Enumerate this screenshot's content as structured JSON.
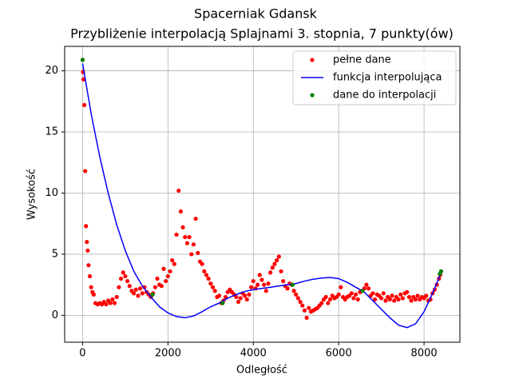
{
  "chart_data": {
    "type": "line",
    "title": "Spacerniak Gdansk",
    "subtitle": "Przybliżenie interpolacją Splajnami 3. stopnia, 7 punkty(ów)",
    "x_label": "Odległość",
    "y_label": "Wysokość",
    "xlim": [
      -420,
      8840
    ],
    "ylim": [
      -2.2,
      22
    ],
    "xticks": [
      0,
      2000,
      4000,
      6000,
      8000
    ],
    "yticks": [
      0,
      5,
      10,
      15,
      20
    ],
    "grid": true,
    "legend": "upper right",
    "series": [
      {
        "name": "pełne dane",
        "color": "#ff0000",
        "type": "scatter",
        "x": [
          0,
          10,
          20,
          40,
          60,
          80,
          100,
          120,
          140,
          170,
          200,
          230,
          260,
          300,
          350,
          400,
          450,
          500,
          550,
          600,
          650,
          700,
          750,
          800,
          850,
          900,
          950,
          1000,
          1050,
          1100,
          1150,
          1200,
          1250,
          1300,
          1350,
          1400,
          1450,
          1500,
          1550,
          1600,
          1650,
          1700,
          1750,
          1800,
          1850,
          1900,
          1950,
          2000,
          2050,
          2100,
          2150,
          2200,
          2250,
          2300,
          2350,
          2400,
          2450,
          2500,
          2550,
          2600,
          2650,
          2700,
          2750,
          2800,
          2850,
          2900,
          2950,
          3000,
          3050,
          3100,
          3150,
          3200,
          3250,
          3300,
          3350,
          3400,
          3450,
          3500,
          3550,
          3600,
          3650,
          3700,
          3750,
          3800,
          3850,
          3900,
          3950,
          4000,
          4050,
          4100,
          4150,
          4200,
          4250,
          4300,
          4350,
          4400,
          4450,
          4500,
          4550,
          4600,
          4650,
          4700,
          4750,
          4800,
          4850,
          4900,
          4950,
          5000,
          5050,
          5100,
          5150,
          5200,
          5250,
          5300,
          5350,
          5400,
          5450,
          5500,
          5550,
          5600,
          5650,
          5700,
          5750,
          5800,
          5850,
          5900,
          5950,
          6000,
          6050,
          6100,
          6150,
          6200,
          6250,
          6300,
          6350,
          6400,
          6450,
          6500,
          6550,
          6600,
          6650,
          6700,
          6750,
          6800,
          6850,
          6900,
          6950,
          7000,
          7050,
          7100,
          7150,
          7200,
          7250,
          7300,
          7350,
          7400,
          7450,
          7500,
          7550,
          7600,
          7650,
          7700,
          7750,
          7800,
          7850,
          7900,
          7950,
          8000,
          8050,
          8100,
          8150,
          8200,
          8250,
          8300,
          8350,
          8380,
          8400
        ],
        "values": [
          20.9,
          19.9,
          19.3,
          17.2,
          11.8,
          7.3,
          6.0,
          5.3,
          4.1,
          3.2,
          2.3,
          1.9,
          1.7,
          1.0,
          0.9,
          1.0,
          0.9,
          1.1,
          0.9,
          1.2,
          1.0,
          1.3,
          1.0,
          1.5,
          2.3,
          3.0,
          3.5,
          3.2,
          2.8,
          2.4,
          2.0,
          1.8,
          2.1,
          1.6,
          2.2,
          1.8,
          2.3,
          1.9,
          1.7,
          1.5,
          1.8,
          2.3,
          3.0,
          2.5,
          2.4,
          3.8,
          2.8,
          3.2,
          3.6,
          4.5,
          4.2,
          6.6,
          10.2,
          8.5,
          7.2,
          6.4,
          5.9,
          6.4,
          5.0,
          5.8,
          7.9,
          5.1,
          4.4,
          4.2,
          3.6,
          3.3,
          3.0,
          2.6,
          2.3,
          2.0,
          1.5,
          1.6,
          1.0,
          1.2,
          1.5,
          1.9,
          2.1,
          1.9,
          1.7,
          1.5,
          1.1,
          1.4,
          1.8,
          1.6,
          1.3,
          1.7,
          2.3,
          2.8,
          2.2,
          2.5,
          3.3,
          2.9,
          2.5,
          2.0,
          2.6,
          3.5,
          3.9,
          4.2,
          4.5,
          4.8,
          3.6,
          2.8,
          2.4,
          2.2,
          2.6,
          2.5,
          2.0,
          1.7,
          1.4,
          1.1,
          0.8,
          0.4,
          -0.2,
          0.6,
          0.3,
          0.4,
          0.5,
          0.6,
          0.8,
          1.0,
          1.3,
          1.5,
          1.0,
          1.3,
          1.6,
          1.4,
          1.5,
          1.7,
          2.3,
          1.5,
          1.3,
          1.5,
          1.6,
          1.8,
          1.4,
          1.7,
          1.3,
          1.9,
          2.0,
          2.2,
          2.5,
          2.2,
          1.6,
          1.8,
          1.3,
          1.7,
          1.6,
          1.4,
          1.8,
          1.2,
          1.5,
          1.3,
          1.6,
          1.2,
          1.5,
          1.3,
          1.7,
          1.4,
          1.8,
          1.9,
          1.5,
          1.2,
          1.5,
          1.3,
          1.6,
          1.3,
          1.5,
          1.4,
          1.6,
          1.2,
          1.3,
          1.8,
          2.1,
          2.5,
          3.0,
          3.3,
          3.6
        ]
      },
      {
        "name": "funkcja interpolująca",
        "color": "#0000ff",
        "type": "line",
        "x": [
          0,
          200,
          400,
          600,
          800,
          1000,
          1200,
          1400,
          1600,
          1800,
          2000,
          2200,
          2400,
          2600,
          2800,
          3000,
          3200,
          3400,
          3600,
          3800,
          4000,
          4200,
          4400,
          4600,
          4800,
          5000,
          5200,
          5400,
          5600,
          5800,
          6000,
          6200,
          6400,
          6600,
          6800,
          7000,
          7200,
          7400,
          7600,
          7800,
          8000,
          8200,
          8400
        ],
        "values": [
          20.6,
          16.5,
          13.0,
          10.0,
          7.4,
          5.3,
          3.6,
          2.4,
          1.5,
          0.7,
          0.2,
          -0.1,
          -0.2,
          -0.05,
          0.3,
          0.7,
          1.0,
          1.4,
          1.7,
          1.95,
          2.1,
          2.2,
          2.3,
          2.4,
          2.5,
          2.6,
          2.8,
          2.95,
          3.05,
          3.1,
          3.0,
          2.7,
          2.3,
          1.9,
          1.2,
          0.5,
          -0.2,
          -0.8,
          -1.0,
          -0.7,
          0.3,
          1.8,
          3.5
        ]
      },
      {
        "name": "dane do interpolacji",
        "color": "#008000",
        "type": "scatter",
        "x": [
          0,
          1640,
          3280,
          4920,
          6560,
          8370,
          8400
        ],
        "values": [
          20.9,
          1.7,
          1.0,
          2.5,
          2.0,
          3.4,
          3.6
        ]
      }
    ]
  }
}
